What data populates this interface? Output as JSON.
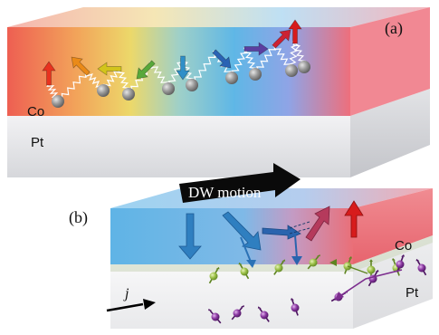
{
  "panel_a": {
    "label": "(a)",
    "top_layer_label": "Co",
    "bottom_layer_label": "Pt",
    "spins": [
      {
        "color": "#e8321f",
        "dir": "up",
        "icon": "arrow-up-icon"
      },
      {
        "color": "#ea8a18",
        "dir": "up-left",
        "icon": "arrow-up-left-icon"
      },
      {
        "color": "#d2c41c",
        "dir": "left",
        "icon": "arrow-left-icon"
      },
      {
        "color": "#58a83a",
        "dir": "down-left",
        "icon": "arrow-down-left-icon"
      },
      {
        "color": "#2f8fc8",
        "dir": "down",
        "icon": "arrow-down-icon"
      },
      {
        "color": "#2a63b4",
        "dir": "down-right",
        "icon": "arrow-down-right-icon"
      },
      {
        "color": "#5b3ea0",
        "dir": "right",
        "icon": "arrow-right-icon"
      },
      {
        "color": "#cc2233",
        "dir": "up-right",
        "icon": "arrow-up-right-icon"
      },
      {
        "color": "#d71c1c",
        "dir": "up",
        "icon": "arrow-up-icon"
      }
    ]
  },
  "panel_b": {
    "label": "(b)",
    "top_layer_label": "Co",
    "bottom_layer_label": "Pt",
    "motion_label": "DW motion",
    "current_label": "j",
    "colors": {
      "blue_domain": "#5fb4e6",
      "red_domain": "#ea6f78",
      "green_electron": "#8cb33c",
      "purple_electron": "#7c2d8e"
    }
  }
}
